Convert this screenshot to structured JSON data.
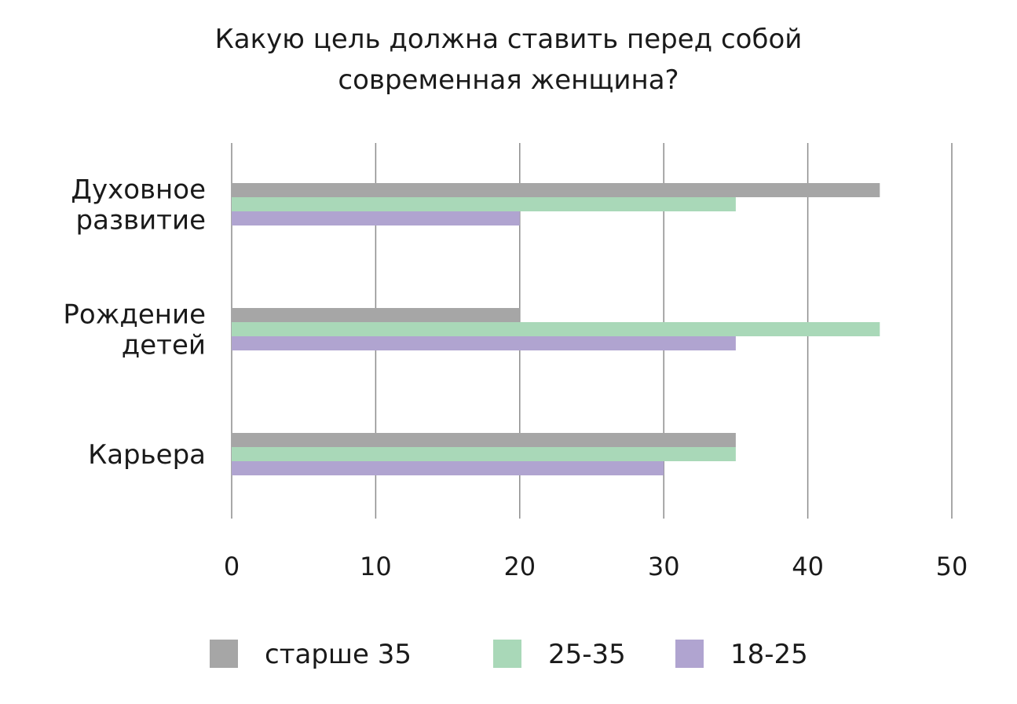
{
  "chart_data": {
    "type": "bar",
    "orientation": "horizontal",
    "title_lines": [
      "Какую цель должна ставить перед собой",
      "современная женщина?"
    ],
    "xlabel": "",
    "ylabel": "",
    "categories": [
      {
        "lines": [
          "Духовное",
          "развитие"
        ]
      },
      {
        "lines": [
          "Рождение",
          "детей"
        ]
      },
      {
        "lines": [
          "Карьера"
        ]
      }
    ],
    "series": [
      {
        "name": "старше 35",
        "color": "#a6a6a6",
        "values": [
          45,
          20,
          35
        ]
      },
      {
        "name": "25-35",
        "color": "#a9d8b8",
        "values": [
          35,
          45,
          35
        ]
      },
      {
        "name": "18-25",
        "color": "#b0a4d0",
        "values": [
          20,
          35,
          30
        ]
      }
    ],
    "xlim": [
      0,
      50
    ],
    "xticks": [
      0,
      10,
      20,
      30,
      40,
      50
    ],
    "grid": "vertical",
    "legend_position": "bottom",
    "gridline_color": "#8c8c8c"
  }
}
